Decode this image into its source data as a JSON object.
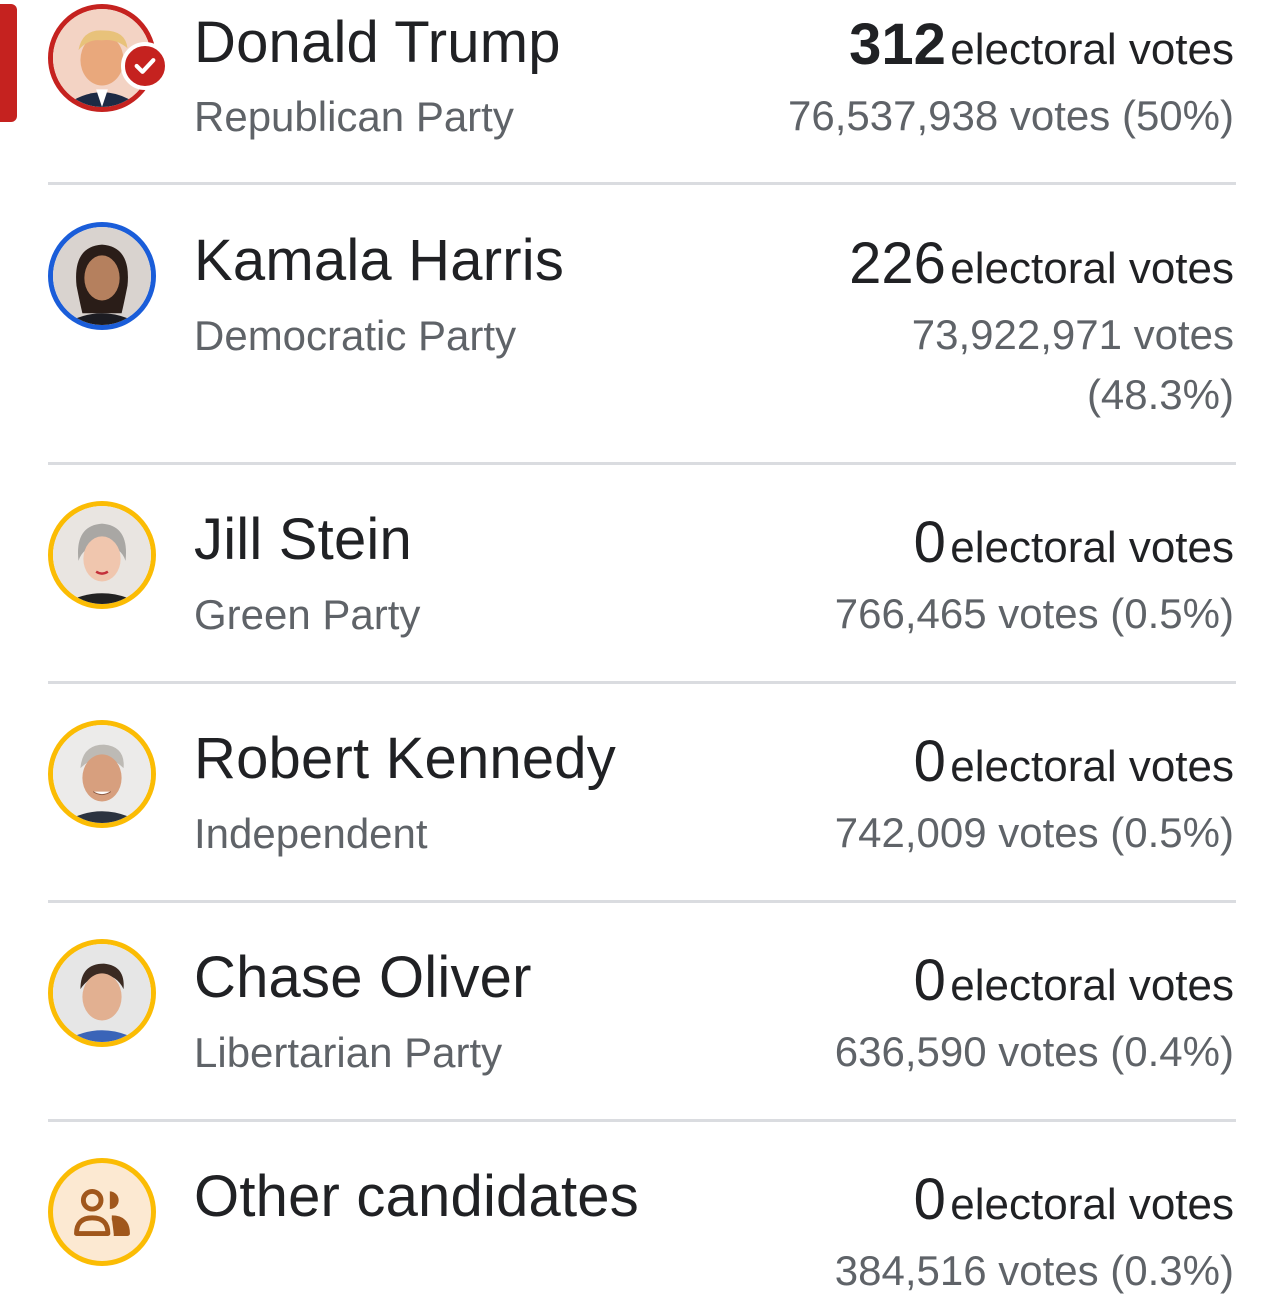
{
  "candidates": [
    {
      "name": "Donald Trump",
      "party": "Republican Party",
      "electoral_votes": "312",
      "electoral_label": "electoral votes",
      "votes_text": "76,537,938 votes (50%)",
      "ring_color": "#c5221f",
      "winner": true
    },
    {
      "name": "Kamala Harris",
      "party": "Democratic Party",
      "electoral_votes": "226",
      "electoral_label": "electoral votes",
      "votes_line1": "73,922,971 votes",
      "votes_line2": "(48.3%)",
      "ring_color": "#1a5dd9"
    },
    {
      "name": "Jill Stein",
      "party": "Green Party",
      "electoral_votes": "0",
      "electoral_label": "electoral votes",
      "votes_text": "766,465 votes (0.5%)",
      "ring_color": "#fbbc04"
    },
    {
      "name": "Robert Kennedy",
      "party": "Independent",
      "electoral_votes": "0",
      "electoral_label": "electoral votes",
      "votes_text": "742,009 votes (0.5%)",
      "ring_color": "#fbbc04"
    },
    {
      "name": "Chase Oliver",
      "party": "Libertarian Party",
      "electoral_votes": "0",
      "electoral_label": "electoral votes",
      "votes_text": "636,590 votes (0.4%)",
      "ring_color": "#fbbc04"
    },
    {
      "name": "Other candidates",
      "electoral_votes": "0",
      "electoral_label": "electoral votes",
      "votes_text": "384,516 votes (0.3%)",
      "ring_color": "#fbbc04",
      "icon": "people-group-icon"
    }
  ],
  "colors": {
    "winner_accent": "#c5221f",
    "democrat_ring": "#1a5dd9",
    "other_ring": "#fbbc04"
  }
}
